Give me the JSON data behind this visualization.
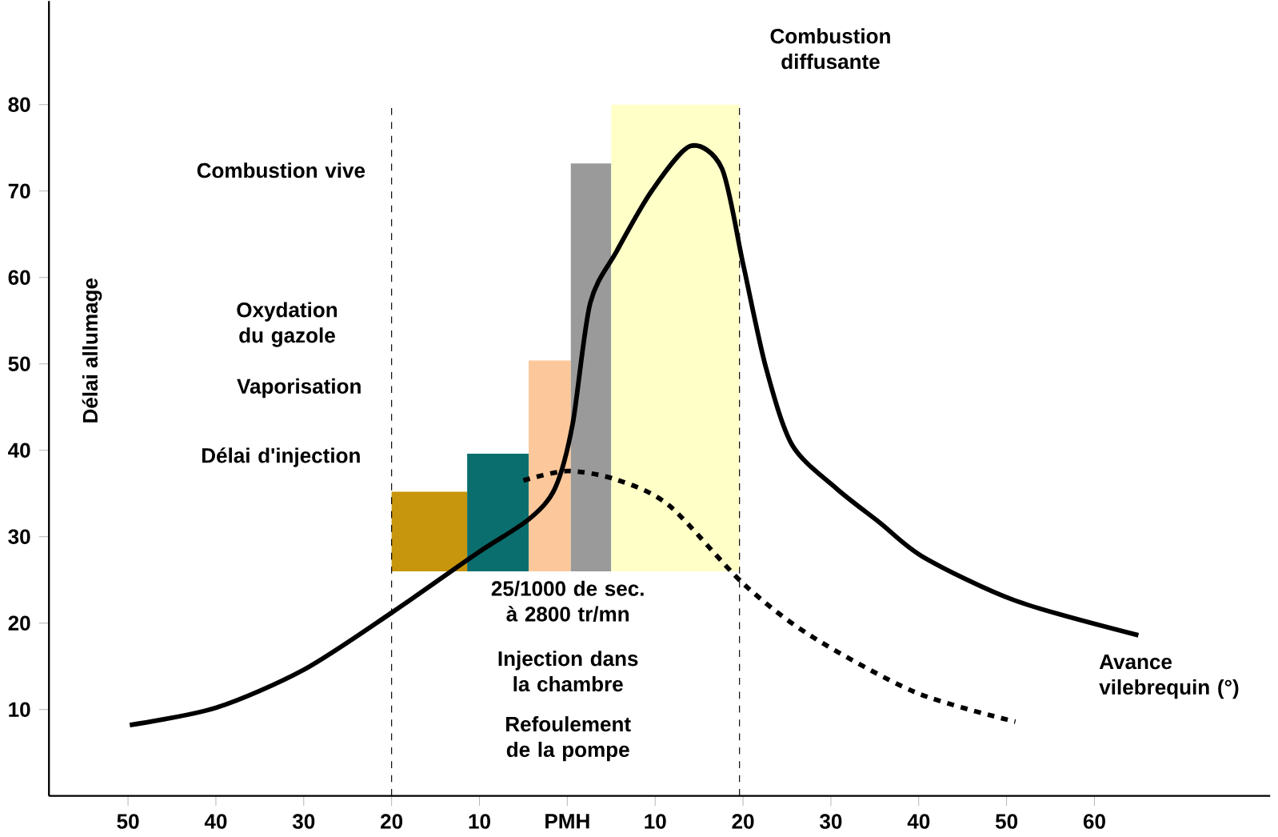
{
  "chart_data": {
    "type": "line",
    "ylabel": "Délai allumage",
    "xlabel": "Avance vilebrequin (°)",
    "xlim": [
      -59,
      80
    ],
    "ylim": [
      0,
      92
    ],
    "xticks": [
      {
        "value": -50,
        "label": "50"
      },
      {
        "value": -40,
        "label": "40"
      },
      {
        "value": -30,
        "label": "30"
      },
      {
        "value": -20,
        "label": "20"
      },
      {
        "value": -10,
        "label": "10"
      },
      {
        "value": 0,
        "label": "PMH"
      },
      {
        "value": 10,
        "label": "10"
      },
      {
        "value": 20,
        "label": "20"
      },
      {
        "value": 30,
        "label": "30"
      },
      {
        "value": 40,
        "label": "40"
      },
      {
        "value": 50,
        "label": "50"
      },
      {
        "value": 60,
        "label": "60"
      }
    ],
    "yticks": [
      10,
      20,
      30,
      40,
      50,
      60,
      70,
      80
    ],
    "series": [
      {
        "type": "histogram",
        "bins": [
          -20,
          -11.4,
          -4.4,
          0.4,
          5,
          19.6
        ],
        "base": [
          26,
          26,
          26,
          26,
          26
        ],
        "values": [
          9.2,
          13.6,
          24.4,
          47.2,
          54
        ],
        "colors": [
          "#c8960c",
          "#0b6e6e",
          "#fcc89b",
          "#9a9a9a",
          "#ffffc8"
        ]
      },
      {
        "color": "#000000",
        "line_style": "dashed",
        "x": [
          -5,
          0,
          5.6,
          11.6,
          20,
          27.6,
          39.6,
          51
        ],
        "values": [
          36.5,
          37.6,
          36.6,
          33.6,
          24.6,
          18.6,
          12,
          8.6
        ]
      },
      {
        "color": "#000000",
        "line_style": "solid",
        "x": [
          -49.8,
          -40,
          -30,
          -20,
          -10.4,
          -4.4,
          -1.4,
          0.6,
          2.6,
          5.6,
          9.6,
          14,
          17.6,
          20,
          22.6,
          25.6,
          30.6,
          35.6,
          40.6,
          51,
          65
        ],
        "values": [
          8.2,
          10.2,
          14.6,
          21.2,
          28,
          32,
          35.6,
          43,
          57,
          63,
          70,
          75.2,
          72.6,
          61.6,
          49.6,
          40.6,
          35.6,
          31.6,
          27.6,
          22.6,
          18.6
        ]
      }
    ],
    "ref_lines": [
      {
        "axis": "x",
        "value": -20,
        "line_style": "dashed"
      },
      {
        "axis": "x",
        "value": 19.6,
        "line_style": "dashed"
      }
    ],
    "annotations": [
      "Combustion diffusante",
      "Combustion vive",
      "Oxydation du gazole",
      "Vaporisation",
      "Délai d'injection",
      "25/1000 de sec. à 2800 tr/mn",
      "Injection dans la chambre",
      "Refoulement de la pompe"
    ]
  }
}
